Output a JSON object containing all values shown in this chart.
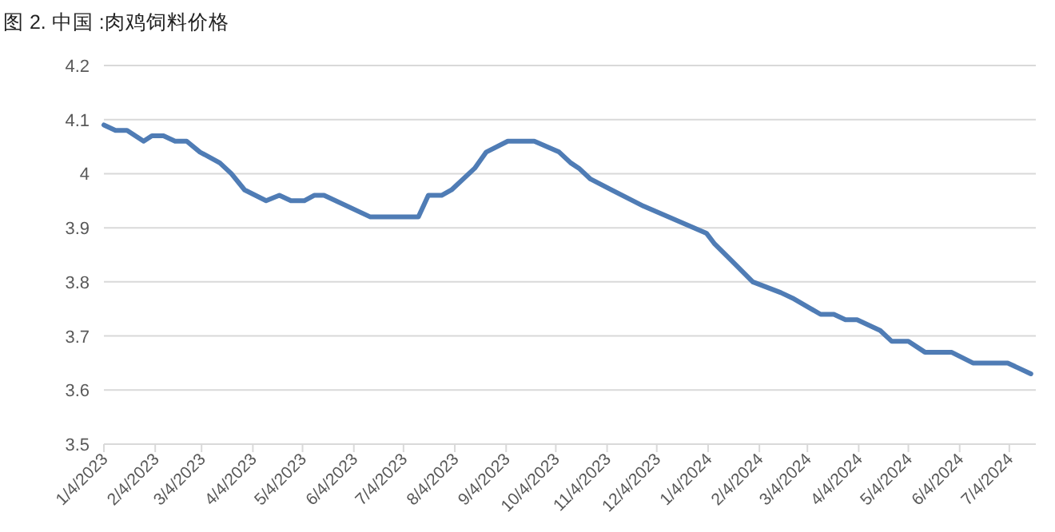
{
  "chart_data": {
    "type": "line",
    "title": "图 2. 中国 :肉鸡饲料价格",
    "x": [
      "2023-01-04",
      "2023-01-11",
      "2023-01-18",
      "2023-01-28",
      "2023-02-02",
      "2023-02-09",
      "2023-02-16",
      "2023-02-23",
      "2023-03-03",
      "2023-03-15",
      "2023-03-22",
      "2023-03-30",
      "2023-04-12",
      "2023-04-20",
      "2023-04-27",
      "2023-05-05",
      "2023-05-11",
      "2023-05-17",
      "2023-06-14",
      "2023-07-13",
      "2023-07-19",
      "2023-07-27",
      "2023-08-02",
      "2023-08-16",
      "2023-08-23",
      "2023-09-05",
      "2023-09-21",
      "2023-10-06",
      "2023-10-13",
      "2023-10-18",
      "2023-10-25",
      "2023-11-26",
      "2024-01-03",
      "2024-01-08",
      "2024-01-18",
      "2024-01-31",
      "2024-02-17",
      "2024-02-24",
      "2024-03-12",
      "2024-03-20",
      "2024-03-27",
      "2024-04-03",
      "2024-04-17",
      "2024-04-24",
      "2024-05-04",
      "2024-05-14",
      "2024-05-30",
      "2024-06-12",
      "2024-07-03",
      "2024-07-17"
    ],
    "series": [
      {
        "color": "#4f7cb5",
        "values": [
          4.09,
          4.08,
          4.08,
          4.06,
          4.07,
          4.07,
          4.06,
          4.06,
          4.04,
          4.02,
          4.0,
          3.97,
          3.95,
          3.96,
          3.95,
          3.95,
          3.96,
          3.96,
          3.92,
          3.92,
          3.96,
          3.96,
          3.97,
          4.01,
          4.04,
          4.06,
          4.06,
          4.04,
          4.02,
          4.01,
          3.99,
          3.94,
          3.89,
          3.87,
          3.84,
          3.8,
          3.78,
          3.77,
          3.74,
          3.74,
          3.73,
          3.73,
          3.71,
          3.69,
          3.69,
          3.67,
          3.67,
          3.65,
          3.65,
          3.63
        ]
      }
    ],
    "xlim": [
      "2023-01-04",
      "2024-07-20"
    ],
    "xticks": [
      {
        "value": "2023-01-04",
        "label": "1/4/2023"
      },
      {
        "value": "2023-02-04",
        "label": "2/4/2023"
      },
      {
        "value": "2023-03-04",
        "label": "3/4/2023"
      },
      {
        "value": "2023-04-04",
        "label": "4/4/2023"
      },
      {
        "value": "2023-05-04",
        "label": "5/4/2023"
      },
      {
        "value": "2023-06-04",
        "label": "6/4/2023"
      },
      {
        "value": "2023-07-04",
        "label": "7/4/2023"
      },
      {
        "value": "2023-08-04",
        "label": "8/4/2023"
      },
      {
        "value": "2023-09-04",
        "label": "9/4/2023"
      },
      {
        "value": "2023-10-04",
        "label": "10/4/2023"
      },
      {
        "value": "2023-11-04",
        "label": "11/4/2023"
      },
      {
        "value": "2023-12-04",
        "label": "12/4/2023"
      },
      {
        "value": "2024-01-04",
        "label": "1/4/2024"
      },
      {
        "value": "2024-02-04",
        "label": "2/4/2024"
      },
      {
        "value": "2024-03-04",
        "label": "3/4/2024"
      },
      {
        "value": "2024-04-04",
        "label": "4/4/2024"
      },
      {
        "value": "2024-05-04",
        "label": "5/4/2024"
      },
      {
        "value": "2024-06-04",
        "label": "6/4/2024"
      },
      {
        "value": "2024-07-04",
        "label": "7/4/2024"
      }
    ],
    "ylim": [
      3.5,
      4.2
    ],
    "yticks": [
      3.5,
      3.6,
      3.7,
      3.8,
      3.9,
      4,
      4.1,
      4.2
    ],
    "grid": "y",
    "marker": "none",
    "line_style": "solid"
  }
}
